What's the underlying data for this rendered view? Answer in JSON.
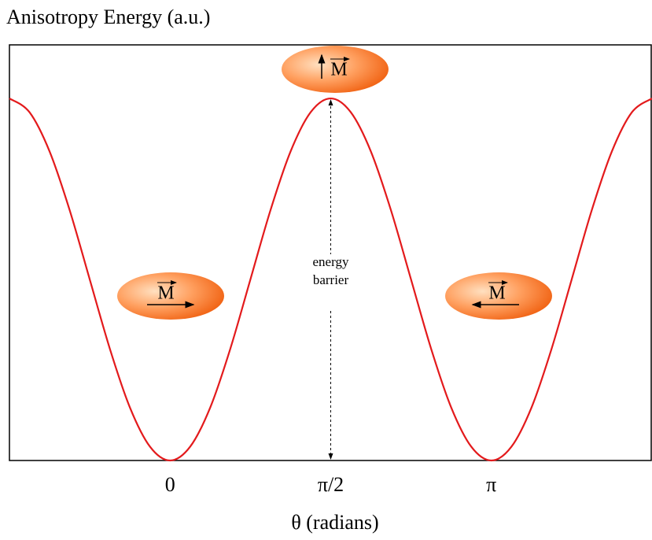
{
  "chart_data": {
    "type": "line",
    "title": "Anisotropy Energy (a.u.)",
    "x_label": "θ (radians)",
    "x": [
      -1.5708,
      -1.3744,
      -1.1781,
      -0.9817,
      -0.7854,
      -0.589,
      -0.3927,
      -0.1963,
      0,
      0.1963,
      0.3927,
      0.589,
      0.7854,
      0.9817,
      1.1781,
      1.3744,
      1.5708,
      1.7671,
      1.9635,
      2.1598,
      2.3562,
      2.5525,
      2.7489,
      2.9452,
      3.1416,
      3.3379,
      3.5343,
      3.7306,
      3.927,
      4.1233,
      4.3197,
      4.516,
      4.7124
    ],
    "series": [
      {
        "color": "#e31a1c",
        "values": [
          1,
          0.9619,
          0.8536,
          0.6913,
          0.5,
          0.3087,
          0.1464,
          0.0381,
          0,
          0.0381,
          0.1464,
          0.3087,
          0.5,
          0.6913,
          0.8536,
          0.9619,
          1,
          0.9619,
          0.8536,
          0.6913,
          0.5,
          0.3087,
          0.1464,
          0.0381,
          0,
          0.0381,
          0.1464,
          0.3087,
          0.5,
          0.6913,
          0.8536,
          0.9619,
          1
        ]
      }
    ],
    "xlim": [
      -1.5708,
      4.7124
    ],
    "ylim": [
      0,
      1.148
    ],
    "xticks": [
      0,
      {
        "value": 1.5708,
        "label": "π/2"
      },
      {
        "value": 3.1416,
        "label": "π"
      }
    ],
    "annotations": {
      "barrier": [
        "energy",
        "barrier"
      ],
      "magnets": [
        "M",
        "M",
        "M"
      ]
    }
  }
}
